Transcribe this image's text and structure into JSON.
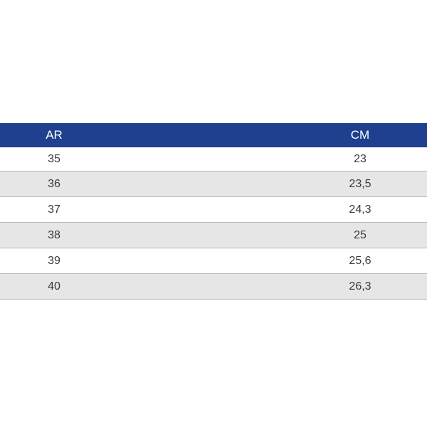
{
  "table": {
    "headers": {
      "left": "AR",
      "right": "CM"
    },
    "rows": [
      {
        "ar": "35",
        "cm": "23"
      },
      {
        "ar": "36",
        "cm": "23,5"
      },
      {
        "ar": "37",
        "cm": "24,3"
      },
      {
        "ar": "38",
        "cm": "25"
      },
      {
        "ar": "39",
        "cm": "25,6"
      },
      {
        "ar": "40",
        "cm": "26,3"
      }
    ],
    "colors": {
      "header_bg": "#1f3f8f",
      "header_text": "#ffffff",
      "row_alt_bg": "#e6e6e6",
      "row_bg": "#ffffff",
      "divider": "#b9b9b9",
      "text": "#3a3a3a"
    }
  }
}
